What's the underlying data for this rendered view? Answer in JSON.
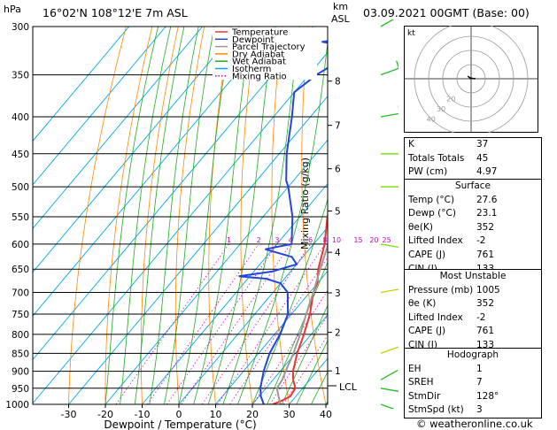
{
  "header": {
    "location": "16°02'N  108°12'E  7m  ASL",
    "date": "03.09.2021  00GMT  (Base: 00)",
    "hpa_unit": "hPa",
    "km_unit": "km",
    "asl_unit": "ASL",
    "lcl_label": "LCL",
    "mixing_axis_label": "Mixing Ratio (g/kg)",
    "copyright": "© weatheronline.co.uk",
    "hodo_unit": "kt"
  },
  "chart_data": {
    "type": "line",
    "xlabel": "Dewpoint / Temperature (°C)",
    "x_ticks": [
      -30,
      -20,
      -10,
      0,
      10,
      20,
      30,
      40
    ],
    "xlim": [
      -35,
      40
    ],
    "pressure_levels": [
      300,
      350,
      400,
      450,
      500,
      550,
      600,
      650,
      700,
      750,
      800,
      850,
      900,
      950,
      1000
    ],
    "km_ticks": [
      {
        "km": "8",
        "p": 357
      },
      {
        "km": "7",
        "p": 411
      },
      {
        "km": "6",
        "p": 472
      },
      {
        "km": "5",
        "p": 540
      },
      {
        "km": "4",
        "p": 616
      },
      {
        "km": "3",
        "p": 701
      },
      {
        "km": "2",
        "p": 795
      },
      {
        "km": "1",
        "p": 899
      }
    ],
    "mixing_ratios": [
      "1",
      "2",
      "3",
      "4",
      "6",
      "8",
      "10",
      "15",
      "20",
      "25"
    ],
    "legend": [
      {
        "name": "Temperature",
        "color": "#ee3333"
      },
      {
        "name": "Dewpoint",
        "color": "#2244dd"
      },
      {
        "name": "Parcel Trajectory",
        "color": "#999999"
      },
      {
        "name": "Dry Adiabat",
        "color": "#ff8800"
      },
      {
        "name": "Wet Adiabat",
        "color": "#22aa22"
      },
      {
        "name": "Isotherm",
        "color": "#00a8e8"
      },
      {
        "name": "Mixing Ratio",
        "color": "#cc00cc"
      }
    ],
    "series": [
      {
        "name": "Temperature",
        "color": "#ee3333",
        "points": [
          [
            1000,
            25.5
          ],
          [
            990,
            27
          ],
          [
            975,
            28.5
          ],
          [
            950,
            28
          ],
          [
            925,
            25.5
          ],
          [
            900,
            23.5
          ],
          [
            850,
            20.5
          ],
          [
            800,
            18
          ],
          [
            750,
            15
          ],
          [
            700,
            11
          ],
          [
            680,
            10
          ],
          [
            650,
            7
          ],
          [
            600,
            3
          ],
          [
            550,
            -2.5
          ],
          [
            500,
            -7
          ],
          [
            450,
            -12
          ],
          [
            400,
            -18
          ],
          [
            380,
            -21
          ],
          [
            370,
            -23
          ]
        ]
      },
      {
        "name": "Dewpoint",
        "color": "#2244dd",
        "points": [
          [
            1000,
            23.1
          ],
          [
            975,
            20.5
          ],
          [
            950,
            18.5
          ],
          [
            925,
            17
          ],
          [
            900,
            15.5
          ],
          [
            850,
            13
          ],
          [
            800,
            11.5
          ],
          [
            750,
            9
          ],
          [
            700,
            4
          ],
          [
            680,
            0
          ],
          [
            670,
            -5
          ],
          [
            665,
            -13
          ],
          [
            655,
            -5
          ],
          [
            640,
            0
          ],
          [
            625,
            -3
          ],
          [
            610,
            -12
          ],
          [
            600,
            -6
          ],
          [
            550,
            -12
          ],
          [
            500,
            -20
          ],
          [
            490,
            -22
          ],
          [
            450,
            -28
          ],
          [
            400,
            -35
          ],
          [
            370,
            -40
          ],
          [
            360,
            -39
          ],
          [
            350,
            -38
          ],
          [
            340,
            -36
          ],
          [
            330,
            -35
          ],
          [
            325,
            -38
          ],
          [
            320,
            -35
          ],
          [
            315,
            -44
          ],
          [
            312,
            -38
          ],
          [
            308,
            -27
          ],
          [
            305,
            -30
          ],
          [
            302,
            -31
          ],
          [
            300,
            -31.5
          ]
        ]
      },
      {
        "name": "Parcel Trajectory",
        "color": "#999999",
        "points": [
          [
            1000,
            27.6
          ],
          [
            950,
            23
          ],
          [
            925,
            22.5
          ],
          [
            900,
            21.5
          ],
          [
            850,
            19.5
          ],
          [
            800,
            17
          ],
          [
            750,
            14
          ],
          [
            700,
            11
          ],
          [
            650,
            7.5
          ],
          [
            600,
            4
          ],
          [
            550,
            0
          ],
          [
            500,
            -4
          ],
          [
            450,
            -9
          ],
          [
            400,
            -15
          ],
          [
            370,
            -19.5
          ]
        ]
      }
    ]
  },
  "winds": [
    {
      "p": 1000,
      "dir": 110,
      "kt": 5,
      "color": "#22bb22"
    },
    {
      "p": 950,
      "dir": 100,
      "kt": 5,
      "color": "#22bb22"
    },
    {
      "p": 925,
      "dir": 60,
      "kt": 3,
      "color": "#22bb22"
    },
    {
      "p": 850,
      "dir": 70,
      "kt": 3,
      "color": "#cccc00"
    },
    {
      "p": 700,
      "dir": 80,
      "kt": 3,
      "color": "#cccc00"
    },
    {
      "p": 600,
      "dir": 100,
      "kt": 5,
      "color": "#77dd00"
    },
    {
      "p": 500,
      "dir": 90,
      "kt": 10,
      "color": "#77dd00"
    },
    {
      "p": 450,
      "dir": 90,
      "kt": 10,
      "color": "#77dd00"
    },
    {
      "p": 400,
      "dir": 80,
      "kt": 10,
      "color": "#22bb22"
    },
    {
      "p": 350,
      "dir": 70,
      "kt": 10,
      "color": "#22bb22"
    },
    {
      "p": 300,
      "dir": 60,
      "kt": 10,
      "color": "#22bb22"
    }
  ],
  "hodograph": {
    "rings": [
      {
        "kt": 10,
        "label": ""
      },
      {
        "kt": 20,
        "label": "20"
      },
      {
        "kt": 30,
        "label": "30"
      },
      {
        "kt": 40,
        "label": "40"
      }
    ],
    "trace": [
      [
        -1,
        0
      ],
      [
        0,
        0.5
      ],
      [
        2,
        0
      ],
      [
        3,
        0.3
      ]
    ],
    "storm_motion": {
      "dir": 128,
      "kt": 3
    }
  },
  "indices": {
    "top": [
      {
        "label": "K",
        "value": "37"
      },
      {
        "label": "Totals Totals",
        "value": "45"
      },
      {
        "label": "PW (cm)",
        "value": "4.97"
      }
    ],
    "surface": {
      "title": "Surface",
      "rows": [
        {
          "label": "Temp (°C)",
          "value": "27.6"
        },
        {
          "label": "Dewp (°C)",
          "value": "23.1"
        },
        {
          "label": "θe(K)",
          "value": "352"
        },
        {
          "label": "Lifted Index",
          "value": "-2"
        },
        {
          "label": "CAPE (J)",
          "value": "761"
        },
        {
          "label": "CIN (J)",
          "value": "133"
        }
      ]
    },
    "most_unstable": {
      "title": "Most Unstable",
      "rows": [
        {
          "label": "Pressure (mb)",
          "value": "1005"
        },
        {
          "label": "θe (K)",
          "value": "352"
        },
        {
          "label": "Lifted Index",
          "value": "-2"
        },
        {
          "label": "CAPE (J)",
          "value": "761"
        },
        {
          "label": "CIN (J)",
          "value": "133"
        }
      ]
    },
    "hodograph": {
      "title": "Hodograph",
      "rows": [
        {
          "label": "EH",
          "value": "1"
        },
        {
          "label": "SREH",
          "value": "7"
        },
        {
          "label": "StmDir",
          "value": "128°"
        },
        {
          "label": "StmSpd (kt)",
          "value": "3"
        }
      ]
    }
  }
}
